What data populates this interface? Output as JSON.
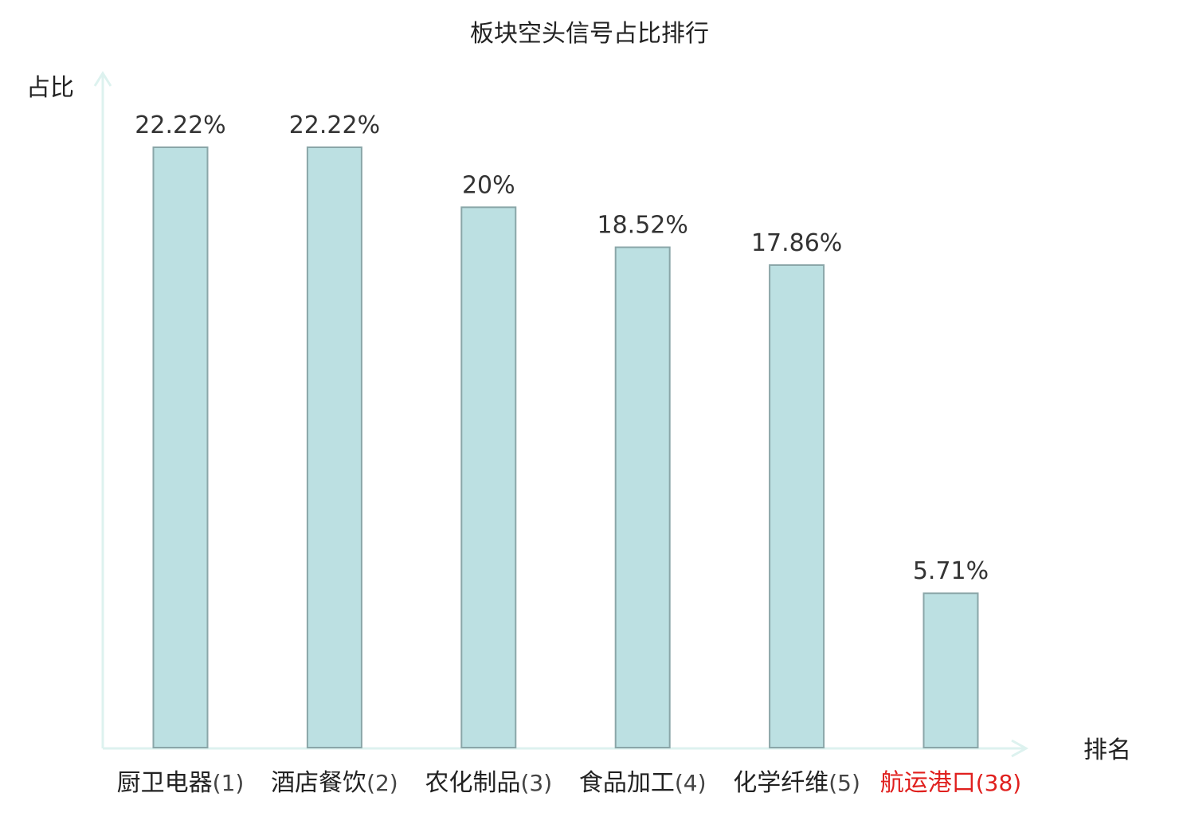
{
  "chart_data": {
    "type": "bar",
    "title": "板块空头信号占比排行",
    "ylabel": "占比",
    "xlabel": "排名",
    "categories": [
      "厨卫电器",
      "酒店餐饮",
      "农化制品",
      "食品加工",
      "化学纤维",
      "航运港口"
    ],
    "ranks": [
      "(1)",
      "(2)",
      "(3)",
      "(4)",
      "(5)",
      "(38)"
    ],
    "values": [
      22.22,
      22.22,
      20,
      18.52,
      17.86,
      5.71
    ],
    "value_labels": [
      "22.22%",
      "22.22%",
      "20%",
      "18.52%",
      "17.86%",
      "5.71%"
    ],
    "highlight_index": 5,
    "ylim": [
      0,
      25
    ],
    "grid": false
  },
  "colors": {
    "bar_fill": "#bce0e2",
    "bar_stroke": "#8aa6a8",
    "axis": "#ddf2ef",
    "text": "#222222",
    "value_text": "#333333",
    "highlight": "#e0201e"
  }
}
